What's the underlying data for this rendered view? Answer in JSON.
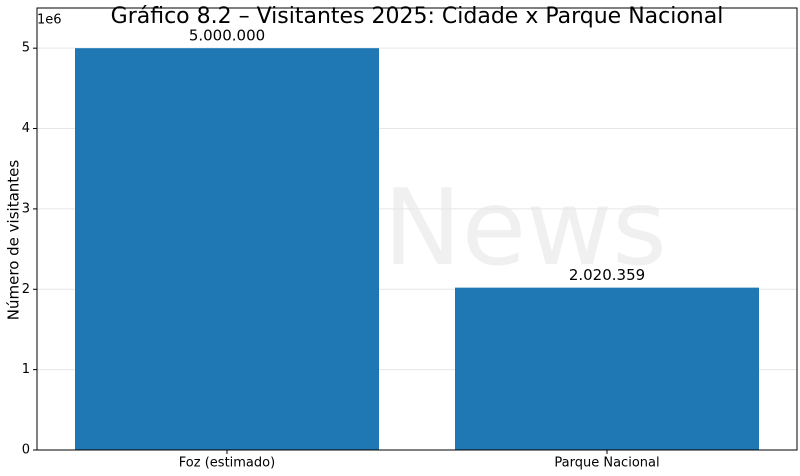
{
  "chart_data": {
    "type": "bar",
    "title": "Gráfico 8.2 – Visitantes 2025: Cidade x Parque Nacional",
    "y_label": "Número de visitantes",
    "y_offset_label": "1e6",
    "watermark": "News",
    "categories": [
      "Foz (estimado)",
      "Parque Nacional"
    ],
    "values": [
      5000000,
      2020359
    ],
    "value_labels": [
      "5.000.000",
      "2.020.359"
    ],
    "color": "#1f77b4",
    "ylim": [
      0,
      5500000
    ],
    "yticks": [
      0,
      {
        "value": 1000000,
        "label": "1"
      },
      {
        "value": 2000000,
        "label": "2"
      },
      {
        "value": 3000000,
        "label": "3"
      },
      {
        "value": 4000000,
        "label": "4"
      },
      {
        "value": 5000000,
        "label": "5"
      }
    ],
    "grid": true
  }
}
